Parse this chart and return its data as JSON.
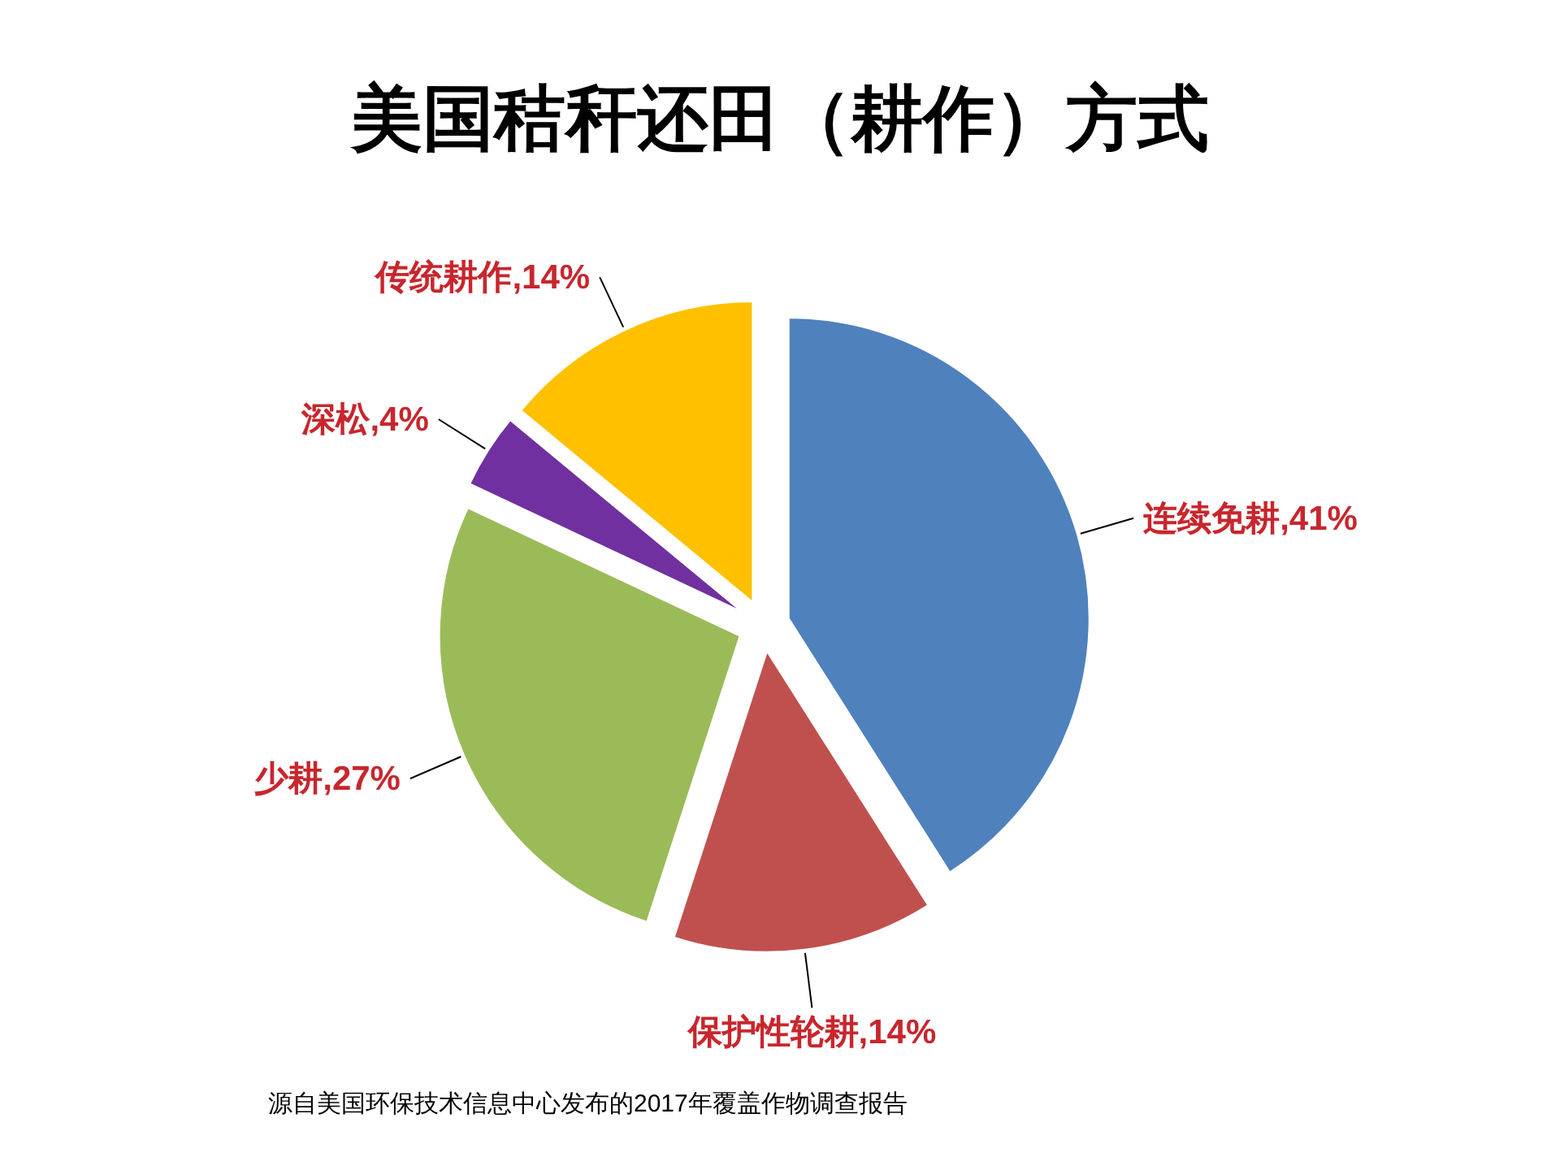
{
  "chart_data": {
    "type": "pie",
    "title": "美国秸秆还田（耕作）方式",
    "categories": [
      "连续免耕",
      "保护性轮耕",
      "少耕",
      "深松",
      "传统耕作"
    ],
    "values": [
      41,
      14,
      27,
      4,
      14
    ],
    "colors": [
      "#4f81bd",
      "#c0504d",
      "#9bbb59",
      "#7030a0",
      "#ffc000"
    ],
    "value_labels": [
      ",41%",
      ",14%",
      ",27%",
      ",4%",
      ",14%"
    ],
    "annotations": [
      "源自美国环保技术信息中心发布的2017年覆盖作物调查报告"
    ]
  }
}
